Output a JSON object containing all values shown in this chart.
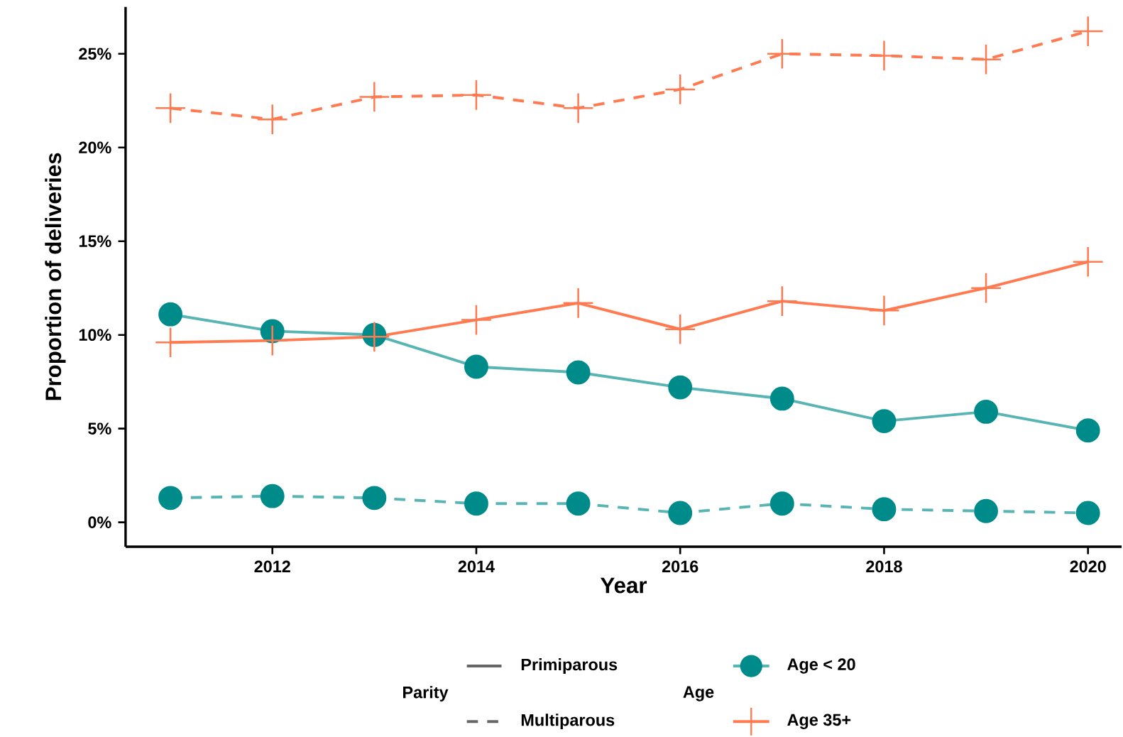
{
  "chart_data": {
    "type": "line",
    "xlabel": "Year",
    "ylabel": "Proportion of deliveries",
    "legend": "bottom",
    "legend_title": "Age",
    "grid": false,
    "annotations": [
      "Parity",
      "Primiparous",
      "Multiparous"
    ],
    "x": [
      2011,
      2012,
      2013,
      2014,
      2015,
      2016,
      2017,
      2018,
      2019,
      2020
    ],
    "series": [
      {
        "name": "Age < 20",
        "color": "#008b8b",
        "marker": "circle",
        "line_style": "solid",
        "values": [
          11.1,
          10.2,
          10.0,
          8.3,
          8.0,
          7.2,
          6.6,
          5.4,
          5.9,
          4.9
        ]
      },
      {
        "color": "#008b8b",
        "marker": "circle",
        "line_style": "dashed",
        "values": [
          1.3,
          1.4,
          1.3,
          1.0,
          1.0,
          0.5,
          1.0,
          0.7,
          0.6,
          0.5
        ]
      },
      {
        "name": "Age 35+",
        "color": "#ff7a50",
        "marker": "cross",
        "line_style": "solid",
        "values": [
          9.6,
          9.7,
          9.9,
          10.8,
          11.7,
          10.3,
          11.8,
          11.3,
          12.5,
          13.9
        ]
      },
      {
        "color": "#ff7a50",
        "marker": "cross",
        "line_style": "dashed",
        "values": [
          22.1,
          21.5,
          22.7,
          22.8,
          22.1,
          23.1,
          25.0,
          24.9,
          24.7,
          26.2
        ]
      }
    ],
    "xlim": [
      2010.56,
      2020.33
    ],
    "ylim": [
      -1.3,
      27.5
    ],
    "xticks": [
      2012,
      2014,
      2016,
      2018,
      2020
    ],
    "yticks": [
      {
        "value": 0,
        "label": "0%"
      },
      {
        "value": 5,
        "label": "5%"
      },
      {
        "value": 10,
        "label": "10%"
      },
      {
        "value": 15,
        "label": "15%"
      },
      {
        "value": 20,
        "label": "20%"
      },
      {
        "value": 25,
        "label": "25%"
      }
    ]
  }
}
